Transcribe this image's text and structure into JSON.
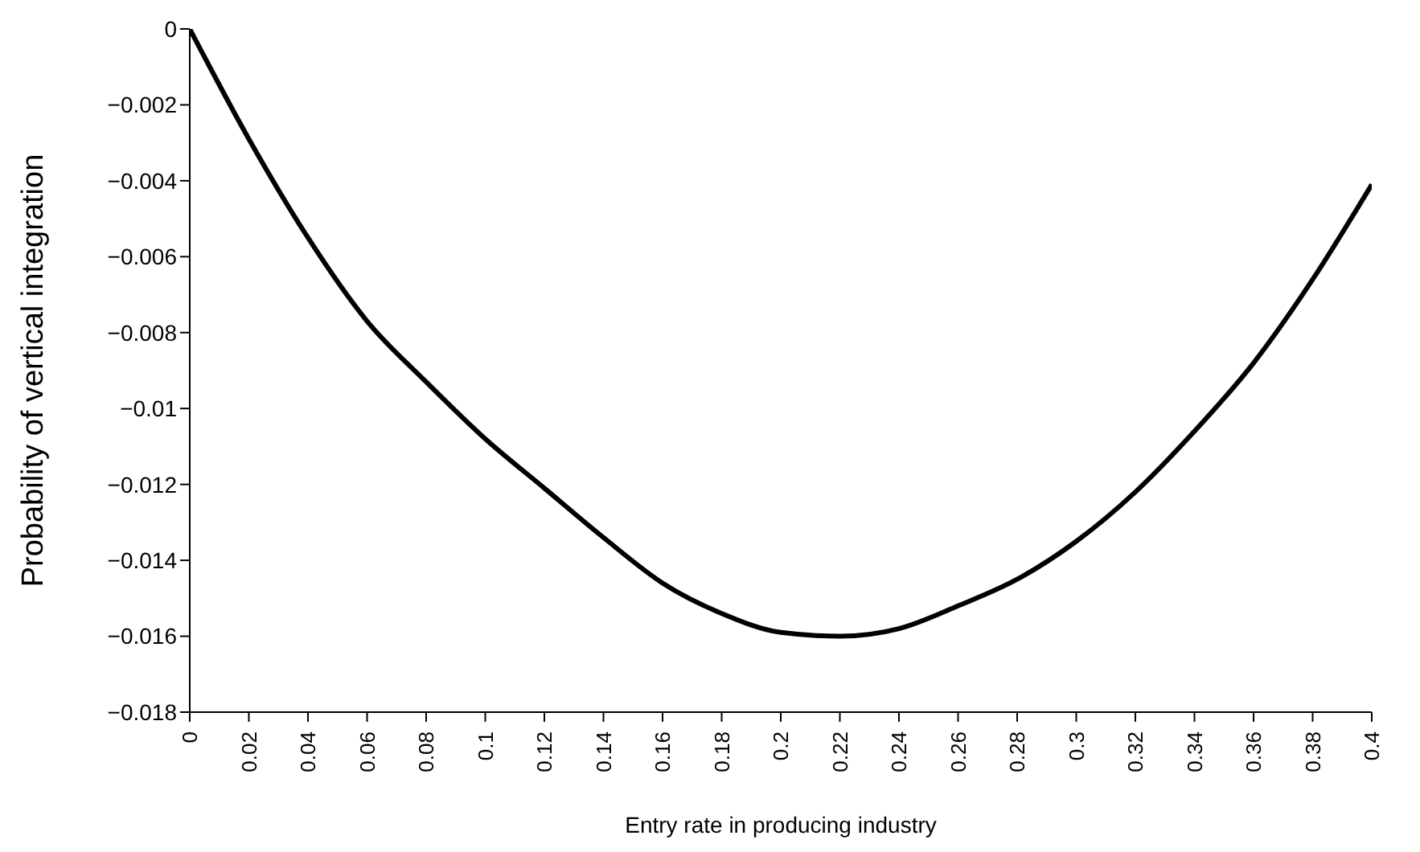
{
  "chart_data": {
    "type": "line",
    "xlabel": "Entry rate in producing industry",
    "ylabel": "Probability of vertical integration",
    "x": [
      0,
      0.02,
      0.04,
      0.06,
      0.08,
      0.1,
      0.12,
      0.14,
      0.16,
      0.18,
      0.2,
      0.22,
      0.24,
      0.26,
      0.28,
      0.3,
      0.32,
      0.34,
      0.36,
      0.38,
      0.4
    ],
    "series": [
      {
        "color": "#000000",
        "values": [
          0,
          -0.0029,
          -0.0055,
          -0.0077,
          -0.0093,
          -0.0108,
          -0.0121,
          -0.0134,
          -0.0146,
          -0.0154,
          -0.0159,
          -0.016,
          -0.0158,
          -0.0152,
          -0.0145,
          -0.0135,
          -0.0122,
          -0.0106,
          -0.0088,
          -0.0066,
          -0.0041
        ]
      }
    ],
    "xlim": [
      0,
      0.4
    ],
    "xticks": [
      0,
      0.02,
      0.04,
      0.06,
      0.08,
      0.1,
      0.12,
      0.14,
      0.16,
      0.18,
      0.2,
      0.22,
      0.24,
      0.26,
      0.28,
      0.3,
      0.32,
      0.34,
      0.36,
      0.38,
      0.4
    ],
    "ylim": [
      -0.018,
      0
    ],
    "yticks": [
      {
        "value": -0.018,
        "label": "−0.018"
      },
      {
        "value": -0.016,
        "label": "−0.016"
      },
      {
        "value": -0.014,
        "label": "−0.014"
      },
      {
        "value": -0.012,
        "label": "−0.012"
      },
      {
        "value": -0.01,
        "label": "−0.01"
      },
      {
        "value": -0.008,
        "label": "−0.008"
      },
      {
        "value": -0.006,
        "label": "−0.006"
      },
      {
        "value": -0.004,
        "label": "−0.004"
      },
      {
        "value": -0.002,
        "label": "−0.002"
      },
      {
        "value": 0,
        "label": "0"
      }
    ],
    "grid": false,
    "legend": false,
    "marker": "none",
    "line_style": "solid"
  }
}
